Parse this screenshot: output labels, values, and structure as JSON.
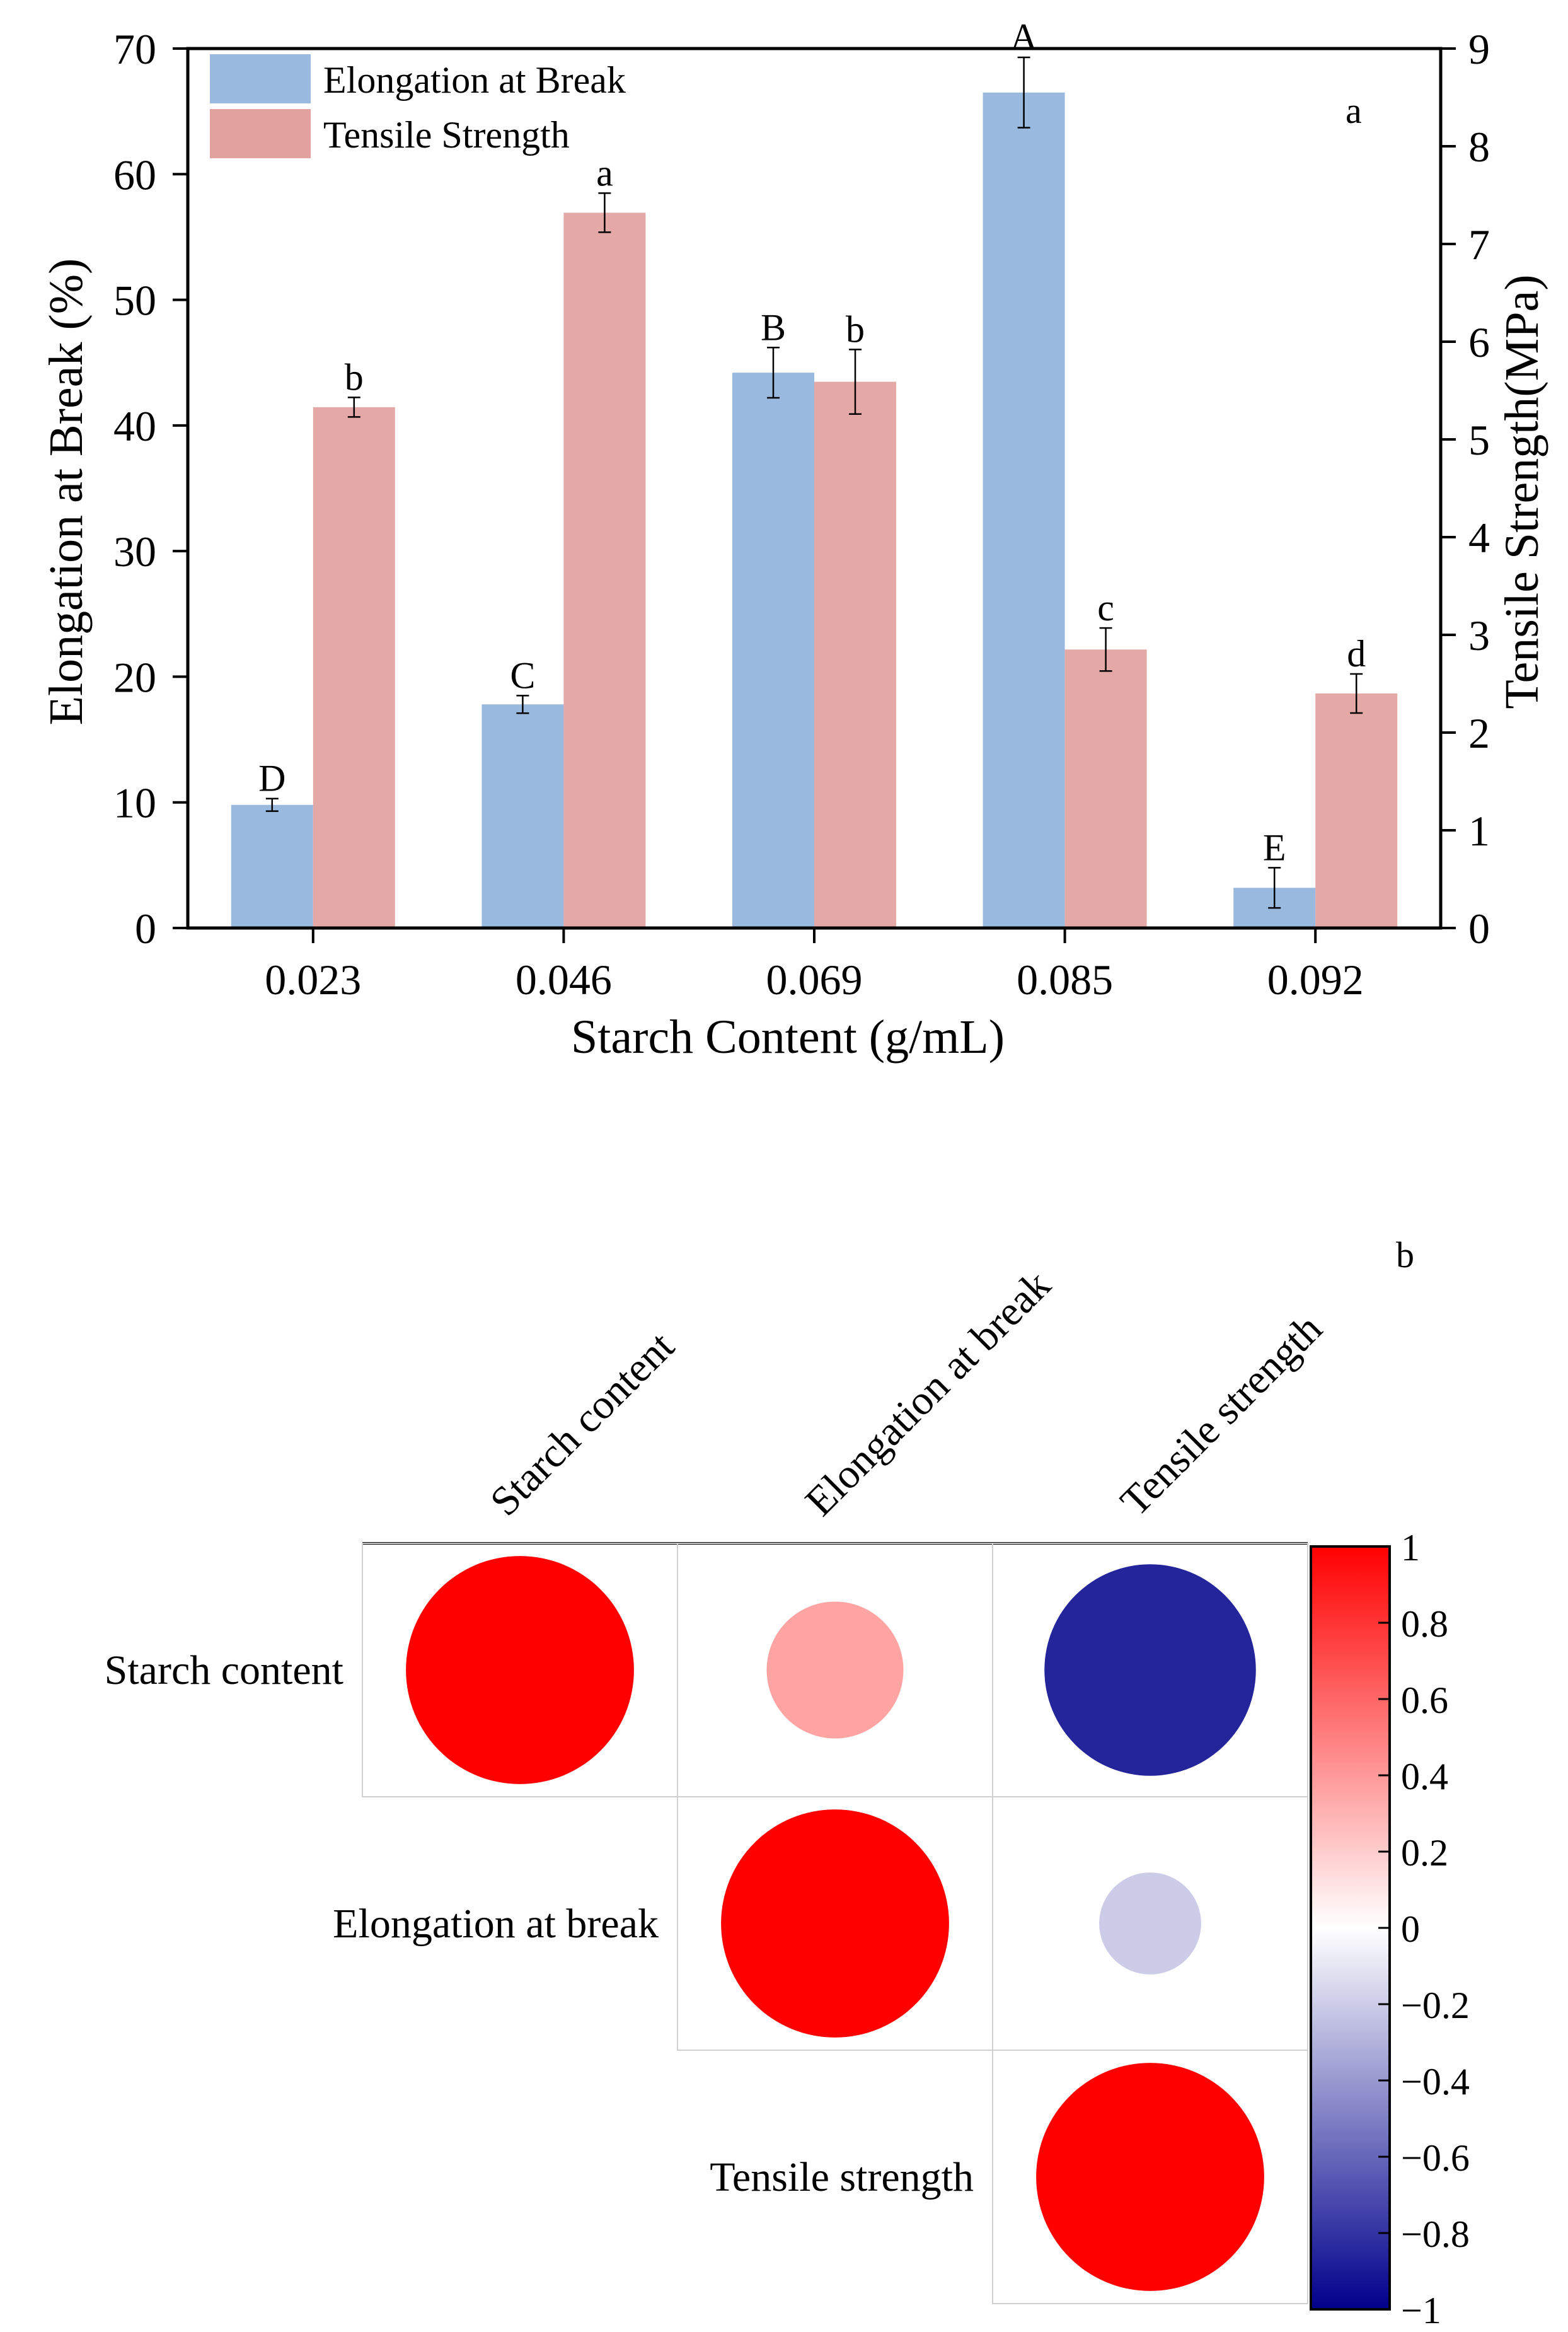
{
  "panel_a": {
    "label": "a",
    "chart_data": {
      "type": "bar",
      "xlabel": "Starch Content (g/mL)",
      "ylabel_left": "Elongation at Break (%)",
      "ylabel_right": "Tensile Strength(MPa)",
      "categories": [
        "0.023",
        "0.046",
        "0.069",
        "0.085",
        "0.092"
      ],
      "ylim_left": [
        0,
        70
      ],
      "ylim_right": [
        0,
        9
      ],
      "yticks_left": [
        "0",
        "10",
        "20",
        "30",
        "40",
        "50",
        "60",
        "70"
      ],
      "yticks_right": [
        "0",
        "1",
        "2",
        "3",
        "4",
        "5",
        "6",
        "7",
        "8",
        "9"
      ],
      "legend_position": "top-left",
      "series": [
        {
          "name": "Elongation at Break",
          "axis": "left",
          "color": "#99b9de",
          "values": [
            9.8,
            17.8,
            44.2,
            66.5,
            3.2
          ],
          "errors": [
            0.5,
            0.7,
            2.0,
            2.8,
            1.6
          ],
          "letters": [
            "D",
            "C",
            "B",
            "A",
            "E"
          ]
        },
        {
          "name": "Tensile Strength",
          "axis": "right",
          "color": "#e2a19f",
          "values": [
            5.33,
            7.32,
            5.59,
            2.85,
            2.4
          ],
          "errors": [
            0.1,
            0.2,
            0.33,
            0.22,
            0.2
          ],
          "letters": [
            "b",
            "a",
            "b",
            "c",
            "d"
          ]
        }
      ]
    }
  },
  "panel_b": {
    "label": "b",
    "chart_data": {
      "type": "heatmap",
      "variables": [
        "Starch content",
        "Elongation at break",
        "Tensile strength"
      ],
      "correlation": [
        [
          1.0,
          0.36,
          -0.86
        ],
        [
          0.36,
          1.0,
          -0.2
        ],
        [
          -0.86,
          -0.2,
          1.0
        ]
      ],
      "shown_cells": "upper triangle",
      "colorbar_range": [
        -1,
        1
      ],
      "colorbar_ticks": [
        "1",
        "0.8",
        "0.6",
        "0.4",
        "0.2",
        "0",
        "−0.2",
        "−0.4",
        "−0.6",
        "−0.8",
        "−1"
      ],
      "colormap": [
        "#00008b",
        "#ffffff",
        "#ff0000"
      ]
    }
  }
}
